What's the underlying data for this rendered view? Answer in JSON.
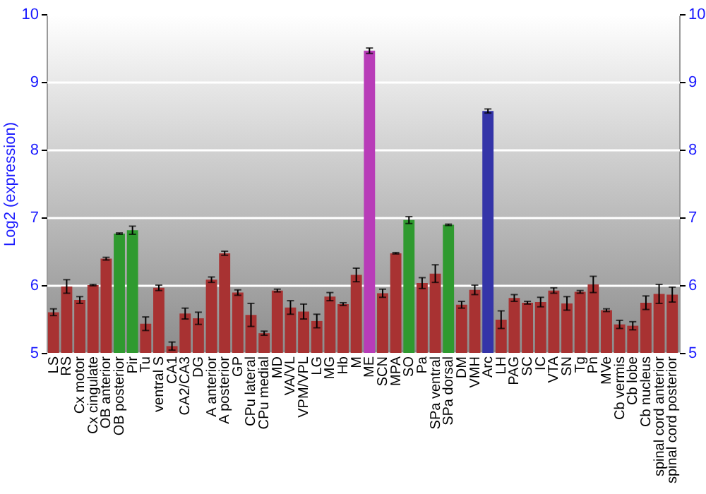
{
  "chart_data": {
    "type": "bar",
    "ylabel": "Log2 (expression)",
    "categories": [
      "LS",
      "RS",
      "Cx motor",
      "Cx cingulate",
      "OB anterior",
      "OB posterior",
      "Pir",
      "Tu",
      "ventral S",
      "CA1",
      "CA2/CA3",
      "DG",
      "A anterior",
      "A posterior",
      "GP",
      "CPu lateral",
      "CPu medial",
      "MD",
      "VA/VL",
      "VPM/VPL",
      "LG",
      "MG",
      "Hb",
      "M",
      "ME",
      "SCN",
      "MPA",
      "SO",
      "Pa",
      "SPa ventral",
      "SPa dorsal",
      "DM",
      "VMH",
      "Arc",
      "LH",
      "PAG",
      "SC",
      "IC",
      "VTA",
      "SN",
      "Tg",
      "Pn",
      "MVe",
      "Cb vermis",
      "Cb lobe",
      "Cb nucleus",
      "spinal cord anterior",
      "spinal cord posterior"
    ],
    "values": [
      5.6,
      5.98,
      5.78,
      6.0,
      6.39,
      6.76,
      6.81,
      5.43,
      5.96,
      5.1,
      5.58,
      5.51,
      6.08,
      6.47,
      5.89,
      5.56,
      5.29,
      5.92,
      5.67,
      5.61,
      5.47,
      5.83,
      5.72,
      6.15,
      9.46,
      5.88,
      6.47,
      6.96,
      6.03,
      6.17,
      6.89,
      5.71,
      5.93,
      8.57,
      5.49,
      5.81,
      5.74,
      5.75,
      5.92,
      5.73,
      5.9,
      6.01,
      5.63,
      5.42,
      5.4,
      5.74,
      5.87,
      5.86
    ],
    "errors": [
      0.05,
      0.1,
      0.05,
      0.01,
      0.02,
      0.01,
      0.06,
      0.1,
      0.04,
      0.06,
      0.08,
      0.09,
      0.04,
      0.03,
      0.04,
      0.17,
      0.03,
      0.02,
      0.1,
      0.11,
      0.1,
      0.06,
      0.02,
      0.1,
      0.04,
      0.06,
      0.01,
      0.05,
      0.08,
      0.13,
      0.01,
      0.05,
      0.07,
      0.03,
      0.13,
      0.05,
      0.02,
      0.07,
      0.04,
      0.1,
      0.02,
      0.12,
      0.02,
      0.06,
      0.06,
      0.1,
      0.14,
      0.11
    ],
    "colors": [
      "#a83232",
      "#a83232",
      "#a83232",
      "#a83232",
      "#a83232",
      "#2f9a2f",
      "#2f9a2f",
      "#a83232",
      "#a83232",
      "#a83232",
      "#a83232",
      "#a83232",
      "#a83232",
      "#a83232",
      "#a83232",
      "#a83232",
      "#a83232",
      "#a83232",
      "#a83232",
      "#a83232",
      "#a83232",
      "#a83232",
      "#a83232",
      "#a83232",
      "#b83cb8",
      "#a83232",
      "#a83232",
      "#2f9a2f",
      "#a83232",
      "#a83232",
      "#2f9a2f",
      "#a83232",
      "#a83232",
      "#3434a8",
      "#a83232",
      "#a83232",
      "#a83232",
      "#a83232",
      "#a83232",
      "#a83232",
      "#a83232",
      "#a83232",
      "#a83232",
      "#a83232",
      "#a83232",
      "#a83232",
      "#a83232",
      "#a83232"
    ],
    "ylim": [
      5,
      10
    ],
    "yticks": [
      5,
      6,
      7,
      8,
      9,
      10
    ],
    "y2lim": [
      5,
      10
    ],
    "y2ticks": [
      5,
      6,
      7,
      8,
      9,
      10
    ],
    "grid": "y"
  }
}
